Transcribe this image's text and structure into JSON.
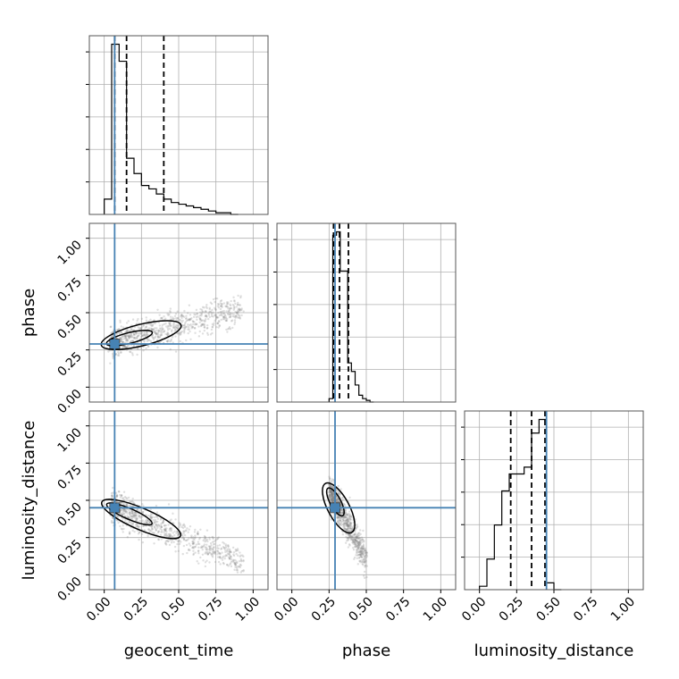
{
  "chart_data": {
    "type": "corner",
    "parameters": [
      "geocent_time",
      "phase",
      "luminosity_distance"
    ],
    "axis_range": [
      -0.1,
      1.1
    ],
    "tick_values": [
      0.0,
      0.25,
      0.5,
      0.75,
      1.0
    ],
    "tick_labels": [
      "0.00",
      "0.25",
      "0.50",
      "0.75",
      "1.00"
    ],
    "grid": true,
    "truths": {
      "geocent_time": 0.07,
      "phase": 0.29,
      "luminosity_distance": 0.45
    },
    "truth_color": "#4682b4",
    "quantiles": {
      "geocent_time": [
        0.07,
        0.15,
        0.4
      ],
      "phase": [
        0.28,
        0.32,
        0.38
      ],
      "luminosity_distance": [
        0.21,
        0.35,
        0.44
      ]
    },
    "histograms": {
      "geocent_time": {
        "bin_width": 0.05,
        "edges": [
          0.0,
          0.05,
          0.1,
          0.15,
          0.2,
          0.25,
          0.3,
          0.35,
          0.4,
          0.45,
          0.5,
          0.55,
          0.6,
          0.65,
          0.7,
          0.75,
          0.8,
          0.85,
          0.9
        ],
        "counts": [
          0.09,
          1.0,
          0.9,
          0.33,
          0.24,
          0.17,
          0.15,
          0.12,
          0.09,
          0.07,
          0.06,
          0.05,
          0.04,
          0.03,
          0.02,
          0.01,
          0.01,
          0.0
        ]
      },
      "phase": {
        "bin_width": 0.025,
        "edges": [
          0.25,
          0.275,
          0.3,
          0.325,
          0.35,
          0.375,
          0.4,
          0.425,
          0.45,
          0.475,
          0.5,
          0.525,
          0.55
        ],
        "counts": [
          0.02,
          0.98,
          1.0,
          0.77,
          0.77,
          0.23,
          0.18,
          0.1,
          0.04,
          0.02,
          0.01,
          0.0
        ]
      },
      "luminosity_distance": {
        "bin_width": 0.05,
        "edges": [
          0.0,
          0.05,
          0.1,
          0.15,
          0.2,
          0.25,
          0.3,
          0.35,
          0.4,
          0.45,
          0.5,
          0.55
        ],
        "counts": [
          0.02,
          0.18,
          0.38,
          0.58,
          0.68,
          0.68,
          0.72,
          0.92,
          1.0,
          0.04,
          0.0
        ]
      }
    },
    "scatter_trends": {
      "phase_vs_geocent_time": {
        "x_range": [
          0.05,
          0.93
        ],
        "y_start": 0.3,
        "y_end": 0.52,
        "spread": 0.05
      },
      "luminosity_distance_vs_geocent_time": {
        "x_range": [
          0.05,
          0.93
        ],
        "y_start": 0.46,
        "y_end": 0.08,
        "spread": 0.05
      },
      "luminosity_distance_vs_phase": {
        "x_range": [
          0.26,
          0.5
        ],
        "y_start": 0.55,
        "y_end": 0.1,
        "spread": 0.05
      }
    }
  }
}
